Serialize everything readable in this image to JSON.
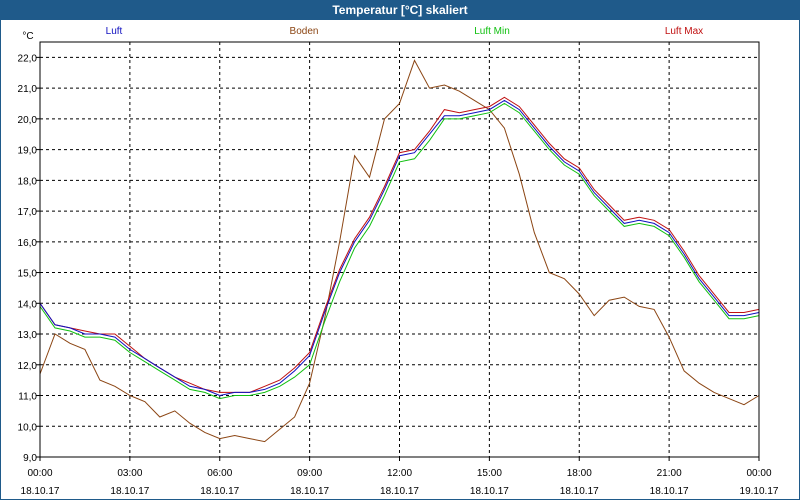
{
  "window": {
    "title": "Temperatur [°C] skaliert"
  },
  "chart_data": {
    "type": "line",
    "title": "Temperatur [°C] skaliert",
    "ylabel": "°C",
    "xlabel": "",
    "ylim": [
      9.0,
      22.5
    ],
    "xlim": [
      0,
      24
    ],
    "grid": true,
    "yticks": [
      "9,0",
      "10,0",
      "11,0",
      "12,0",
      "13,0",
      "14,0",
      "15,0",
      "16,0",
      "17,0",
      "18,0",
      "19,0",
      "20,0",
      "21,0",
      "22,0"
    ],
    "ytick_values": [
      9,
      10,
      11,
      12,
      13,
      14,
      15,
      16,
      17,
      18,
      19,
      20,
      21,
      22
    ],
    "xticks": [
      {
        "x": 0,
        "time": "00:00",
        "date": "18.10.17"
      },
      {
        "x": 3,
        "time": "03:00",
        "date": "18.10.17"
      },
      {
        "x": 6,
        "time": "06:00",
        "date": "18.10.17"
      },
      {
        "x": 9,
        "time": "09:00",
        "date": "18.10.17"
      },
      {
        "x": 12,
        "time": "12:00",
        "date": "18.10.17"
      },
      {
        "x": 15,
        "time": "15:00",
        "date": "18.10.17"
      },
      {
        "x": 18,
        "time": "18:00",
        "date": "18.10.17"
      },
      {
        "x": 21,
        "time": "21:00",
        "date": "18.10.17"
      },
      {
        "x": 24,
        "time": "00:00",
        "date": "19.10.17"
      }
    ],
    "x": [
      0,
      0.5,
      1,
      1.5,
      2,
      2.5,
      3,
      3.5,
      4,
      4.5,
      5,
      5.5,
      6,
      6.5,
      7,
      7.5,
      8,
      8.5,
      9,
      9.5,
      10,
      10.5,
      11,
      11.5,
      12,
      12.5,
      13,
      13.5,
      14,
      14.5,
      15,
      15.5,
      16,
      16.5,
      17,
      17.5,
      18,
      18.5,
      19,
      19.5,
      20,
      20.5,
      21,
      21.5,
      22,
      22.5,
      23,
      23.5,
      24
    ],
    "series": [
      {
        "name": "Luft",
        "color": "#1010c0",
        "legend_position": "left",
        "values": [
          14.0,
          13.3,
          13.2,
          13.0,
          13.0,
          12.9,
          12.5,
          12.2,
          11.9,
          11.6,
          11.3,
          11.2,
          11.0,
          11.1,
          11.1,
          11.2,
          11.4,
          11.8,
          12.3,
          13.7,
          15.0,
          16.0,
          16.7,
          17.7,
          18.8,
          18.9,
          19.5,
          20.1,
          20.1,
          20.2,
          20.3,
          20.6,
          20.3,
          19.7,
          19.1,
          18.6,
          18.3,
          17.6,
          17.1,
          16.6,
          16.7,
          16.6,
          16.3,
          15.6,
          14.8,
          14.2,
          13.6,
          13.6,
          13.7
        ]
      },
      {
        "name": "Boden",
        "color": "#8b4513",
        "legend_position": "center-left",
        "values": [
          11.7,
          13.0,
          12.7,
          12.5,
          11.5,
          11.3,
          11.0,
          10.8,
          10.3,
          10.5,
          10.1,
          9.8,
          9.6,
          9.7,
          9.6,
          9.5,
          9.9,
          10.3,
          11.4,
          13.5,
          16.0,
          18.8,
          18.1,
          20.0,
          20.5,
          21.9,
          21.0,
          21.1,
          20.9,
          20.6,
          20.3,
          19.7,
          18.2,
          16.3,
          15.0,
          14.8,
          14.3,
          13.6,
          14.1,
          14.2,
          13.9,
          13.8,
          12.9,
          11.8,
          11.4,
          11.1,
          10.9,
          10.7,
          11.0
        ]
      },
      {
        "name": "Luft Min",
        "color": "#10c010",
        "legend_position": "center-right",
        "values": [
          13.9,
          13.2,
          13.1,
          12.9,
          12.9,
          12.8,
          12.4,
          12.1,
          11.8,
          11.5,
          11.2,
          11.1,
          10.9,
          11.0,
          11.0,
          11.1,
          11.3,
          11.6,
          12.0,
          13.4,
          14.7,
          15.8,
          16.5,
          17.5,
          18.6,
          18.7,
          19.3,
          20.0,
          20.0,
          20.1,
          20.2,
          20.5,
          20.2,
          19.6,
          19.0,
          18.5,
          18.2,
          17.5,
          17.0,
          16.5,
          16.6,
          16.5,
          16.2,
          15.5,
          14.7,
          14.1,
          13.5,
          13.5,
          13.6
        ]
      },
      {
        "name": "Luft Max",
        "color": "#c01010",
        "legend_position": "right",
        "values": [
          14.0,
          13.3,
          13.2,
          13.1,
          13.0,
          13.0,
          12.6,
          12.2,
          11.9,
          11.6,
          11.4,
          11.2,
          11.1,
          11.1,
          11.1,
          11.3,
          11.5,
          11.9,
          12.4,
          13.8,
          15.1,
          16.1,
          16.8,
          17.8,
          18.9,
          19.0,
          19.6,
          20.3,
          20.2,
          20.3,
          20.4,
          20.7,
          20.4,
          19.8,
          19.2,
          18.7,
          18.4,
          17.7,
          17.2,
          16.7,
          16.8,
          16.7,
          16.4,
          15.7,
          14.9,
          14.3,
          13.7,
          13.7,
          13.8
        ]
      }
    ]
  }
}
